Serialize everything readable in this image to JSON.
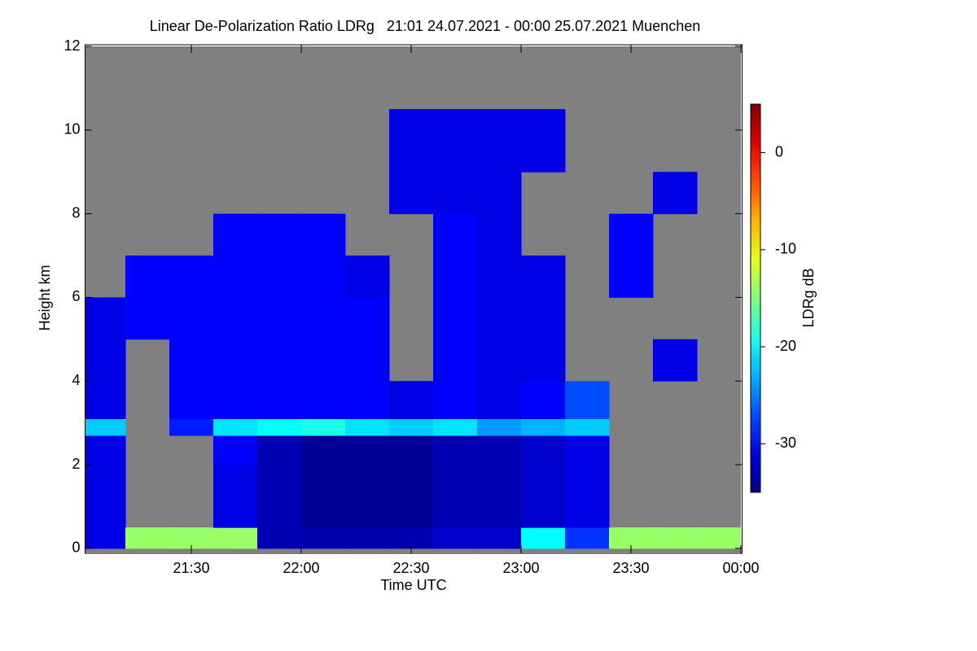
{
  "chart_data": {
    "type": "heatmap",
    "title": "Linear De-Polarization Ratio LDRg   21:01 24.07.2021 - 00:00 25.07.2021 Muenchen",
    "xlabel": "Time UTC",
    "ylabel": "Height km",
    "zlabel": "LDRg dB",
    "colormap": "jet",
    "missing_color": "#808080",
    "xlim": [
      21.0167,
      24
    ],
    "xticks": [
      {
        "value": 21.5,
        "label": "21:30"
      },
      {
        "value": 22,
        "label": "22:00"
      },
      {
        "value": 22.5,
        "label": "22:30"
      },
      {
        "value": 23,
        "label": "23:00"
      },
      {
        "value": 23.5,
        "label": "23:30"
      },
      {
        "value": 24,
        "label": "00:00"
      }
    ],
    "ylim": [
      -0.1,
      12
    ],
    "yticks": [
      0,
      2,
      4,
      6,
      8,
      10,
      12
    ],
    "zlim": [
      -35,
      5
    ],
    "zticks": [
      0,
      -10,
      -20,
      -30
    ],
    "x_edges": [
      21.0,
      21.2,
      21.4,
      21.6,
      21.8,
      22.0,
      22.2,
      22.4,
      22.6,
      22.8,
      23.0,
      23.2,
      23.4,
      23.6,
      23.8,
      24.0
    ],
    "y_edges": [
      0,
      0.5,
      2,
      2.7,
      3.1,
      4,
      5,
      6,
      7,
      8,
      9,
      10.5
    ],
    "z": [
      [
        -31,
        -14,
        -14,
        -14,
        -33,
        -33,
        -33,
        -33,
        -32,
        -32,
        -20,
        -28,
        -14,
        -14,
        -14
      ],
      [
        -31,
        null,
        null,
        -31,
        -33,
        -34,
        -34,
        -34,
        -33,
        -33,
        -32,
        -31,
        null,
        null,
        null
      ],
      [
        -31,
        null,
        null,
        -30,
        -33,
        -34,
        -34,
        -34,
        -33,
        -33,
        -32,
        -31,
        null,
        null,
        null
      ],
      [
        -22,
        null,
        -29,
        -21,
        -20,
        -19,
        -21,
        -22,
        -21,
        -24,
        -23,
        -22,
        null,
        null,
        null
      ],
      [
        -31,
        null,
        -30,
        -30,
        -30,
        -30,
        -30,
        -31,
        -30,
        -31,
        -30,
        -27,
        null,
        null,
        null
      ],
      [
        -31,
        null,
        -30,
        -30,
        -30,
        -30,
        -30,
        null,
        -30,
        -31,
        -31,
        null,
        null,
        -31,
        null
      ],
      [
        -31,
        -30,
        -30,
        -30,
        -30,
        -30,
        -30,
        null,
        -30,
        -31,
        -31,
        null,
        null,
        null,
        null
      ],
      [
        null,
        -30,
        -30,
        -30,
        -30,
        -30,
        -31,
        null,
        -30,
        -31,
        -31,
        null,
        -30,
        null,
        null
      ],
      [
        null,
        null,
        null,
        -30,
        -30,
        -30,
        null,
        null,
        -30,
        -31,
        null,
        null,
        -30,
        null,
        null
      ],
      [
        null,
        null,
        null,
        null,
        null,
        null,
        null,
        -31,
        -31,
        -31,
        null,
        null,
        null,
        -31,
        null
      ],
      [
        null,
        null,
        null,
        null,
        null,
        null,
        null,
        -31,
        -31,
        -31,
        -31,
        null,
        null,
        null,
        null
      ]
    ]
  }
}
